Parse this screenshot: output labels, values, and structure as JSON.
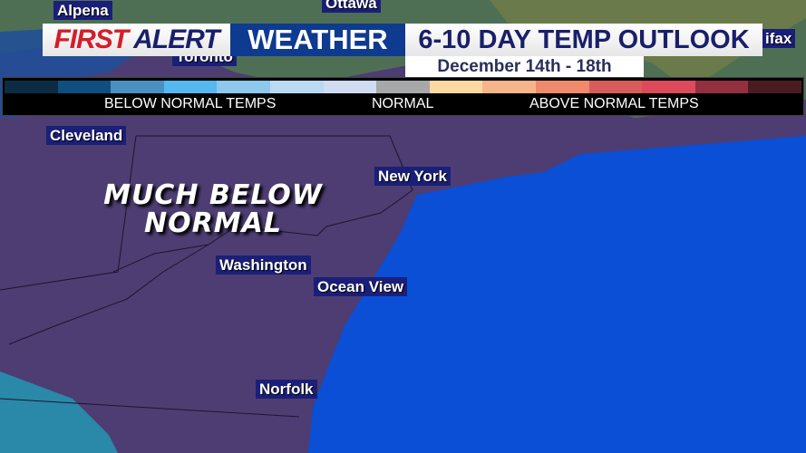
{
  "header": {
    "brand_red": "FIRST",
    "brand_blue": "ALERT",
    "brand_box": "WEATHER",
    "title": "6-10 DAY TEMP OUTLOOK",
    "date_range": "December 14th - 18th"
  },
  "legend": {
    "colors": [
      "#0d2c44",
      "#0e4f80",
      "#4a90c0",
      "#55b8ee",
      "#8ec8ec",
      "#bcd9f2",
      "#cfdcf2",
      "#a6a8aa",
      "#fdd8a0",
      "#f6b588",
      "#ef8a6c",
      "#d85c5c",
      "#dc4a5c",
      "#923040",
      "#4a1c22"
    ],
    "below_label": "BELOW NORMAL TEMPS",
    "normal_label": "NORMAL",
    "above_label": "ABOVE NORMAL TEMPS"
  },
  "map": {
    "region_label_line1": "MUCH BELOW",
    "region_label_line2": "NORMAL",
    "region_color": "#4d3d72",
    "ocean_color": "#0a4fd6",
    "cities": {
      "alpena": "Alpena",
      "ottawa": "Ottawa",
      "toronto": "Toronto",
      "halifax_partial": "ifax",
      "cleveland": "Cleveland",
      "new_york": "New York",
      "washington": "Washington",
      "ocean_view": "Ocean View",
      "norfolk": "Norfolk"
    }
  }
}
